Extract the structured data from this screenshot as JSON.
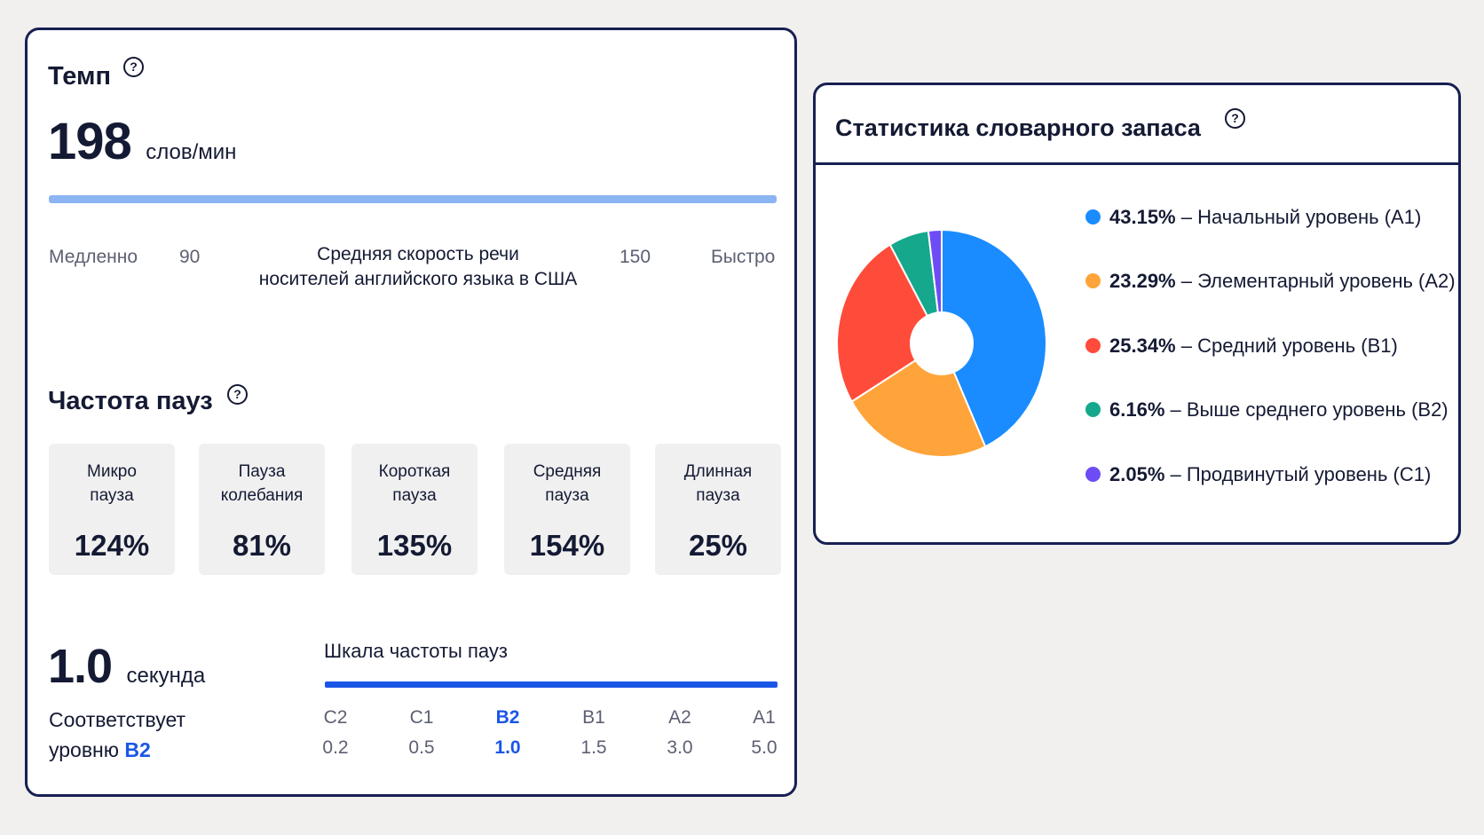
{
  "tempo": {
    "title": "Темп",
    "value": "198",
    "unit": "слов/мин",
    "slow_label": "Медленно",
    "slow_value": "90",
    "center_label_line1": "Средняя скорость речи",
    "center_label_line2": "носителей английского языка в США",
    "fast_value": "150",
    "fast_label": "Быстро",
    "bar_color": "#8bb4f2"
  },
  "pauses": {
    "title": "Частота пауз",
    "items": [
      {
        "label_line1": "Микро",
        "label_line2": "пауза",
        "value": "124%"
      },
      {
        "label_line1": "Пауза",
        "label_line2": "колебания",
        "value": "81%"
      },
      {
        "label_line1": "Короткая",
        "label_line2": "пауза",
        "value": "135%"
      },
      {
        "label_line1": "Средняя",
        "label_line2": "пауза",
        "value": "154%"
      },
      {
        "label_line1": "Длинная",
        "label_line2": "пауза",
        "value": "25%"
      }
    ]
  },
  "pause_level": {
    "value": "1.0",
    "unit": "секунда",
    "match_line1": "Соответствует",
    "match_line2": "уровню",
    "level": "B2",
    "scale_title": "Шкала частоты пауз",
    "scale": [
      {
        "level": "C2",
        "seconds": "0.2"
      },
      {
        "level": "C1",
        "seconds": "0.5"
      },
      {
        "level": "B2",
        "seconds": "1.0"
      },
      {
        "level": "B1",
        "seconds": "1.5"
      },
      {
        "level": "A2",
        "seconds": "3.0"
      },
      {
        "level": "A1",
        "seconds": "5.0"
      }
    ],
    "active_color": "#1a56e8"
  },
  "vocabulary": {
    "title": "Статистика словарного запаса",
    "legend": [
      {
        "percent": "43.15%",
        "label": "Начальный уровень (A1)"
      },
      {
        "percent": "23.29%",
        "label": "Элементарный уровень (A2)"
      },
      {
        "percent": "25.34%",
        "label": "Средний уровень (B1)"
      },
      {
        "percent": "6.16%",
        "label": "Выше среднего уровень (B2)"
      },
      {
        "percent": "2.05%",
        "label": "Продвинутый уровень (C1)"
      }
    ]
  },
  "chart_data": {
    "type": "pie",
    "categories": [
      "Начальный уровень (A1)",
      "Элементарный уровень (A2)",
      "Средний уровень (B1)",
      "Выше среднего уровень (B2)",
      "Продвинутый уровень (C1)"
    ],
    "values": [
      43.15,
      23.29,
      25.34,
      6.16,
      2.05
    ],
    "colors": [
      "#1a8cff",
      "#ffa43a",
      "#ff4b3a",
      "#15a88c",
      "#6e4cf5"
    ],
    "legend_position": "right"
  }
}
